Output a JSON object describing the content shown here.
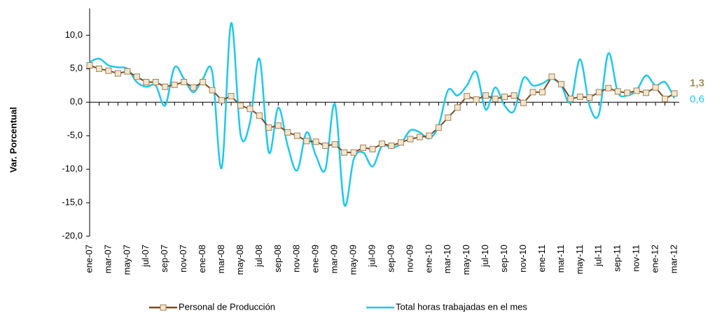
{
  "chart_data": {
    "type": "line",
    "y_label": "Var. Porcentual",
    "categories": [
      "ene-07",
      null,
      "mar-07",
      null,
      "may-07",
      null,
      "jul-07",
      null,
      "sep-07",
      null,
      "nov-07",
      null,
      "ene-08",
      null,
      "mar-08",
      null,
      "may-08",
      null,
      "jul-08",
      null,
      "sep-08",
      null,
      "nov-08",
      null,
      "ene-09",
      null,
      "mar-09",
      null,
      "may-09",
      null,
      "jul-09",
      null,
      "sep-09",
      null,
      "nov-09",
      null,
      "ene-10",
      null,
      "mar-10",
      null,
      "may-10",
      null,
      "jul-10",
      null,
      "sep-10",
      null,
      "nov-10",
      null,
      "ene-11",
      null,
      "mar-11",
      null,
      "may-11",
      null,
      "jul-11",
      null,
      "sep-11",
      null,
      "nov-11",
      null,
      "ene-12",
      null,
      "mar-12"
    ],
    "series": [
      {
        "name": "Personal de Producción",
        "color": "#7b4a1e",
        "marker": "square",
        "values": [
          5.5,
          5.0,
          4.7,
          4.3,
          4.6,
          3.8,
          3.0,
          3.0,
          2.3,
          2.6,
          3.0,
          2.2,
          3.0,
          1.8,
          0.3,
          0.9,
          -0.5,
          -1.0,
          -2.0,
          -3.8,
          -3.5,
          -4.5,
          -5.0,
          -5.8,
          -5.9,
          -6.5,
          -6.3,
          -7.5,
          -7.5,
          -6.8,
          -7.0,
          -6.2,
          -6.5,
          -6.0,
          -5.5,
          -5.2,
          -5.0,
          -3.8,
          -2.3,
          -0.8,
          0.9,
          0.4,
          1.0,
          0.5,
          0.8,
          1.0,
          -0.1,
          1.5,
          1.5,
          3.8,
          2.7,
          0.5,
          0.8,
          0.7,
          1.5,
          2.1,
          1.6,
          1.4,
          1.7,
          1.4,
          2.2,
          0.5,
          1.3
        ],
        "value_labels": [
          null,
          null,
          null,
          null,
          null,
          null,
          null,
          null,
          null,
          null,
          null,
          null,
          null,
          null,
          null,
          null,
          null,
          null,
          null,
          null,
          null,
          null,
          null,
          null,
          null,
          null,
          null,
          null,
          null,
          null,
          null,
          null,
          null,
          null,
          null,
          null,
          null,
          null,
          null,
          null,
          null,
          null,
          null,
          null,
          null,
          null,
          null,
          null,
          null,
          null,
          null,
          null,
          null,
          null,
          null,
          null,
          null,
          null,
          null,
          null,
          null,
          null,
          "1,3"
        ]
      },
      {
        "name": "Total horas trabajadas en el mes",
        "color": "#1ec8f0",
        "marker": "none",
        "values": [
          6.0,
          6.5,
          5.5,
          5.2,
          5.0,
          3.0,
          2.3,
          2.5,
          -0.5,
          5.2,
          3.5,
          1.5,
          3.5,
          4.5,
          -9.8,
          11.8,
          -4.8,
          -3.0,
          6.5,
          -7.5,
          -0.8,
          -6.5,
          -10.2,
          -4.5,
          -8.0,
          -10.0,
          -0.3,
          -15.3,
          -8.5,
          -7.5,
          -9.6,
          -6.5,
          -6.8,
          -6.2,
          -4.2,
          -4.5,
          -5.4,
          -3.5,
          1.8,
          1.0,
          2.5,
          4.5,
          -1.1,
          2.2,
          -0.5,
          -1.3,
          3.6,
          2.5,
          2.8,
          3.5,
          2.5,
          0.0,
          6.4,
          -0.5,
          -1.8,
          7.3,
          1.5,
          1.0,
          1.8,
          4.0,
          2.5,
          3.0,
          0.6
        ],
        "value_labels": [
          null,
          null,
          null,
          null,
          null,
          null,
          null,
          null,
          null,
          null,
          null,
          null,
          null,
          null,
          null,
          null,
          null,
          null,
          null,
          null,
          null,
          null,
          null,
          null,
          null,
          null,
          null,
          null,
          null,
          null,
          null,
          null,
          null,
          null,
          null,
          null,
          null,
          null,
          null,
          null,
          null,
          null,
          null,
          null,
          null,
          null,
          null,
          null,
          null,
          null,
          null,
          null,
          null,
          null,
          null,
          null,
          null,
          null,
          null,
          null,
          null,
          null,
          "0,6"
        ]
      }
    ],
    "ylim": [
      -20,
      14
    ],
    "yticks": [
      {
        "value": -20,
        "label": "-20,0"
      },
      {
        "value": -15,
        "label": "-15,0"
      },
      {
        "value": -10,
        "label": "-10,0"
      },
      {
        "value": -5,
        "label": "-5,0"
      },
      {
        "value": 0,
        "label": "0,0"
      },
      {
        "value": 5,
        "label": "5,0"
      },
      {
        "value": 10,
        "label": "10,0"
      }
    ],
    "legend": "bottom",
    "grid": false
  }
}
